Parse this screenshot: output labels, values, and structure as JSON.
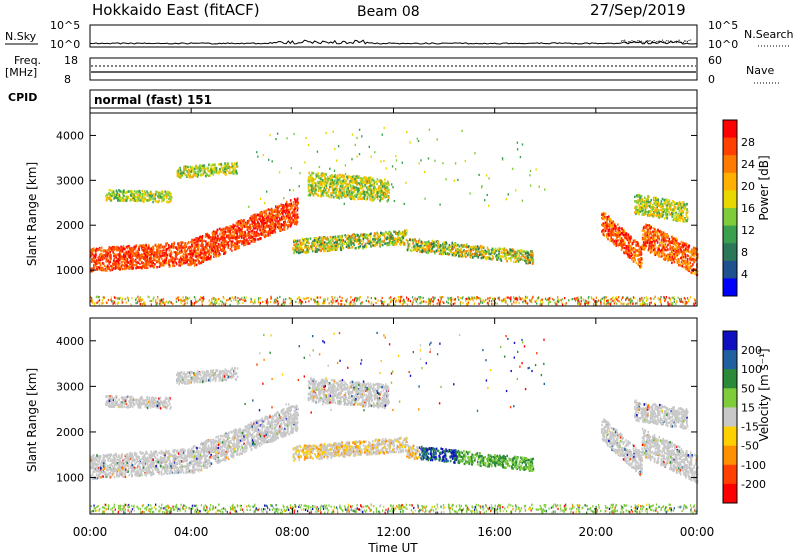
{
  "header": {
    "station": "Hokkaido East (fitACF)",
    "beam": "Beam 08",
    "date": "27/Sep/2019"
  },
  "noise_panel": {
    "left_label": "N.Sky",
    "right_label": "N.Search",
    "left_ticks": [
      "10^5",
      "10^0"
    ],
    "right_ticks": [
      "10^5",
      "10^0"
    ]
  },
  "freq_panel": {
    "left_label": "Freq.",
    "left_unit": "[MHz]",
    "right_label": "Nave",
    "left_ticks": [
      "18",
      "8"
    ],
    "right_ticks": [
      "60",
      "0"
    ]
  },
  "cpid_panel": {
    "label": "CPID",
    "value": "normal (fast) 151"
  },
  "chart_data": [
    {
      "type": "heatmap",
      "name": "power",
      "ylabel": "Slant Range [km]",
      "ylim": [
        200,
        4500
      ],
      "yticks": [
        "1000",
        "2000",
        "3000",
        "4000"
      ],
      "colorbar_label": "Power [dB]",
      "colorbar_ticks": [
        "28",
        "24",
        "20",
        "16",
        "12",
        "8",
        "4"
      ],
      "colorbar_colors": [
        "#ff0000",
        "#ff4000",
        "#ff7a00",
        "#ffb000",
        "#e8d800",
        "#7fcc3a",
        "#3aa050",
        "#2a7858",
        "#1f5090",
        "#0000ff"
      ],
      "xlim_hours": [
        0,
        24
      ]
    },
    {
      "type": "heatmap",
      "name": "velocity",
      "ylabel": "Slant Range [km]",
      "ylim": [
        200,
        4500
      ],
      "yticks": [
        "1000",
        "2000",
        "3000",
        "4000"
      ],
      "colorbar_label": "Velocity [m s⁻¹]",
      "colorbar_ticks": [
        "200",
        "100",
        "50",
        "15",
        "-15",
        "-50",
        "-100",
        "-200"
      ],
      "colorbar_colors": [
        "#1010c0",
        "#2060a0",
        "#2a8a3a",
        "#7fcc3a",
        "#c8c8c8",
        "#ffd000",
        "#ff9000",
        "#ff4000",
        "#ff0000"
      ],
      "xlim_hours": [
        0,
        24
      ]
    }
  ],
  "time_axis": {
    "ticks": [
      "00:00",
      "04:00",
      "08:00",
      "12:00",
      "16:00",
      "20:00",
      "00:00"
    ],
    "label": "Time UT"
  }
}
